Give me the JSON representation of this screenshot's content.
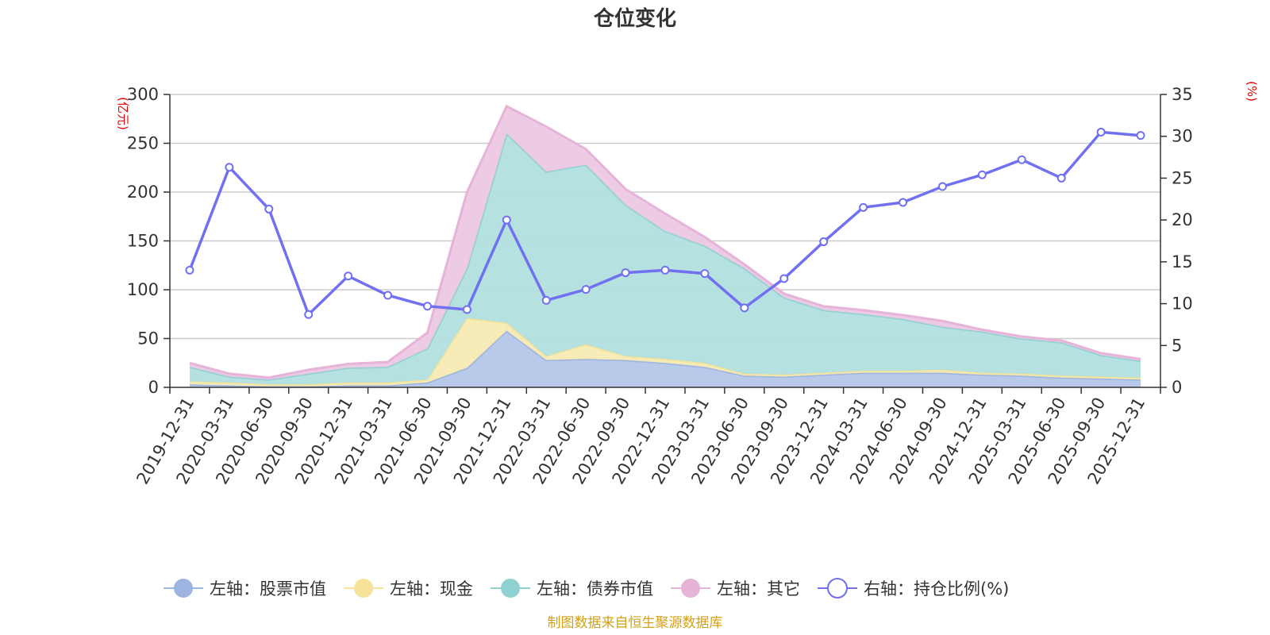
{
  "chart_data": {
    "type": "area",
    "title": "仓位变化",
    "source": "制图数据来自恒生聚源数据库",
    "left_unit": "(亿元)",
    "right_unit": "(%)",
    "left_ylim": [
      0,
      300
    ],
    "left_ticks": [
      0,
      50,
      100,
      150,
      200,
      250,
      300
    ],
    "right_ylim": [
      0,
      35
    ],
    "right_ticks": [
      0,
      5,
      10,
      15,
      20,
      25,
      30,
      35
    ],
    "categories": [
      "2019-12-31",
      "2020-03-31",
      "2020-06-30",
      "2020-09-30",
      "2020-12-31",
      "2021-03-31",
      "2021-06-30",
      "2021-09-30",
      "2021-12-31",
      "2022-03-31",
      "2022-06-30",
      "2022-09-30",
      "2022-12-31",
      "2023-03-31",
      "2023-06-30",
      "2023-09-30",
      "2023-12-31",
      "2024-03-31",
      "2024-06-30",
      "2024-09-30",
      "2024-12-31",
      "2025-03-31",
      "2025-06-30",
      "2025-09-30",
      "2025-12-31"
    ],
    "stacked_series": [
      {
        "name": "左轴：股票市值",
        "color": "#9db4e0",
        "fill": "#b4c6e8",
        "values": [
          3,
          2,
          1,
          1,
          2,
          2,
          5,
          20,
          58,
          28,
          29,
          28,
          25,
          21,
          12,
          11,
          13,
          15,
          15,
          15,
          13,
          12,
          10,
          9,
          8
        ]
      },
      {
        "name": "左轴：现金",
        "color": "#f5e39a",
        "fill": "#f7eab4",
        "values": [
          3,
          3,
          2,
          2,
          3,
          3,
          3,
          51,
          8,
          4,
          15,
          4,
          4,
          4,
          2,
          2,
          2,
          2,
          2,
          3,
          2,
          2,
          2,
          2,
          2
        ]
      },
      {
        "name": "左轴：债券市值",
        "color": "#8fd1d1",
        "fill": "#b2dfdf",
        "values": [
          15,
          6,
          5,
          11,
          15,
          16,
          32,
          51,
          194,
          189,
          184,
          155,
          131,
          120,
          108,
          79,
          64,
          58,
          53,
          44,
          42,
          36,
          34,
          22,
          17
        ]
      },
      {
        "name": "左轴：其它",
        "color": "#e6b3d9",
        "fill": "#ecc8e4",
        "values": [
          4,
          3,
          2,
          4,
          4,
          5,
          16,
          78,
          28,
          46,
          16,
          16,
          18,
          9,
          4,
          4,
          4,
          4,
          4,
          6,
          2,
          2,
          2,
          2,
          2
        ]
      }
    ],
    "line_series": {
      "name": "右轴：持仓比例(%)",
      "color": "#7070f0",
      "values": [
        14,
        26.3,
        21.3,
        8.7,
        13.3,
        11,
        9.7,
        9.3,
        20,
        10.4,
        11.7,
        13.7,
        14,
        13.6,
        9.5,
        13,
        17.4,
        21.5,
        22.1,
        24,
        25.4,
        27.2,
        25,
        30.5,
        30.1
      ]
    }
  }
}
